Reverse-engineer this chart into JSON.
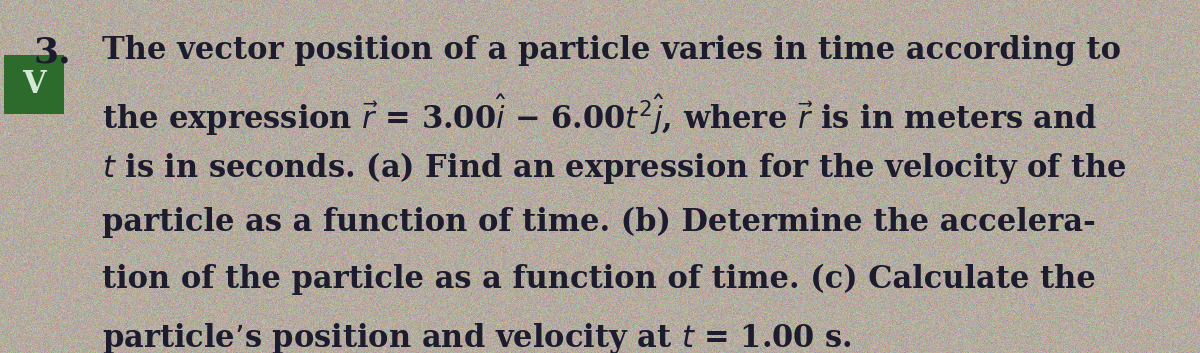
{
  "background_color": "#b5aca0",
  "text_color": "#1c1c2e",
  "number": "3.",
  "badge_text": "V",
  "badge_bg": "#2d6b2d",
  "badge_text_color": "#d4e8d4",
  "line1": "The vector position of a particle varies in time according to",
  "line2": "the expression $\\vec{r}$ = 3.00$\\hat{i}$ − 6.00$t^2$$\\hat{j}$, where $\\vec{r}$ is in meters and",
  "line3": "$t$ is in seconds. (a) Find an expression for the velocity of the",
  "line4": "particle as a function of time. (b) Determine the accelera-",
  "line5": "tion of the particle as a function of time. (c) Calculate the",
  "line6": "particle’s position and velocity at $t$ = 1.00 s.",
  "font_size": 22,
  "number_font_size": 26,
  "figwidth": 12.0,
  "figheight": 3.53,
  "dpi": 100
}
